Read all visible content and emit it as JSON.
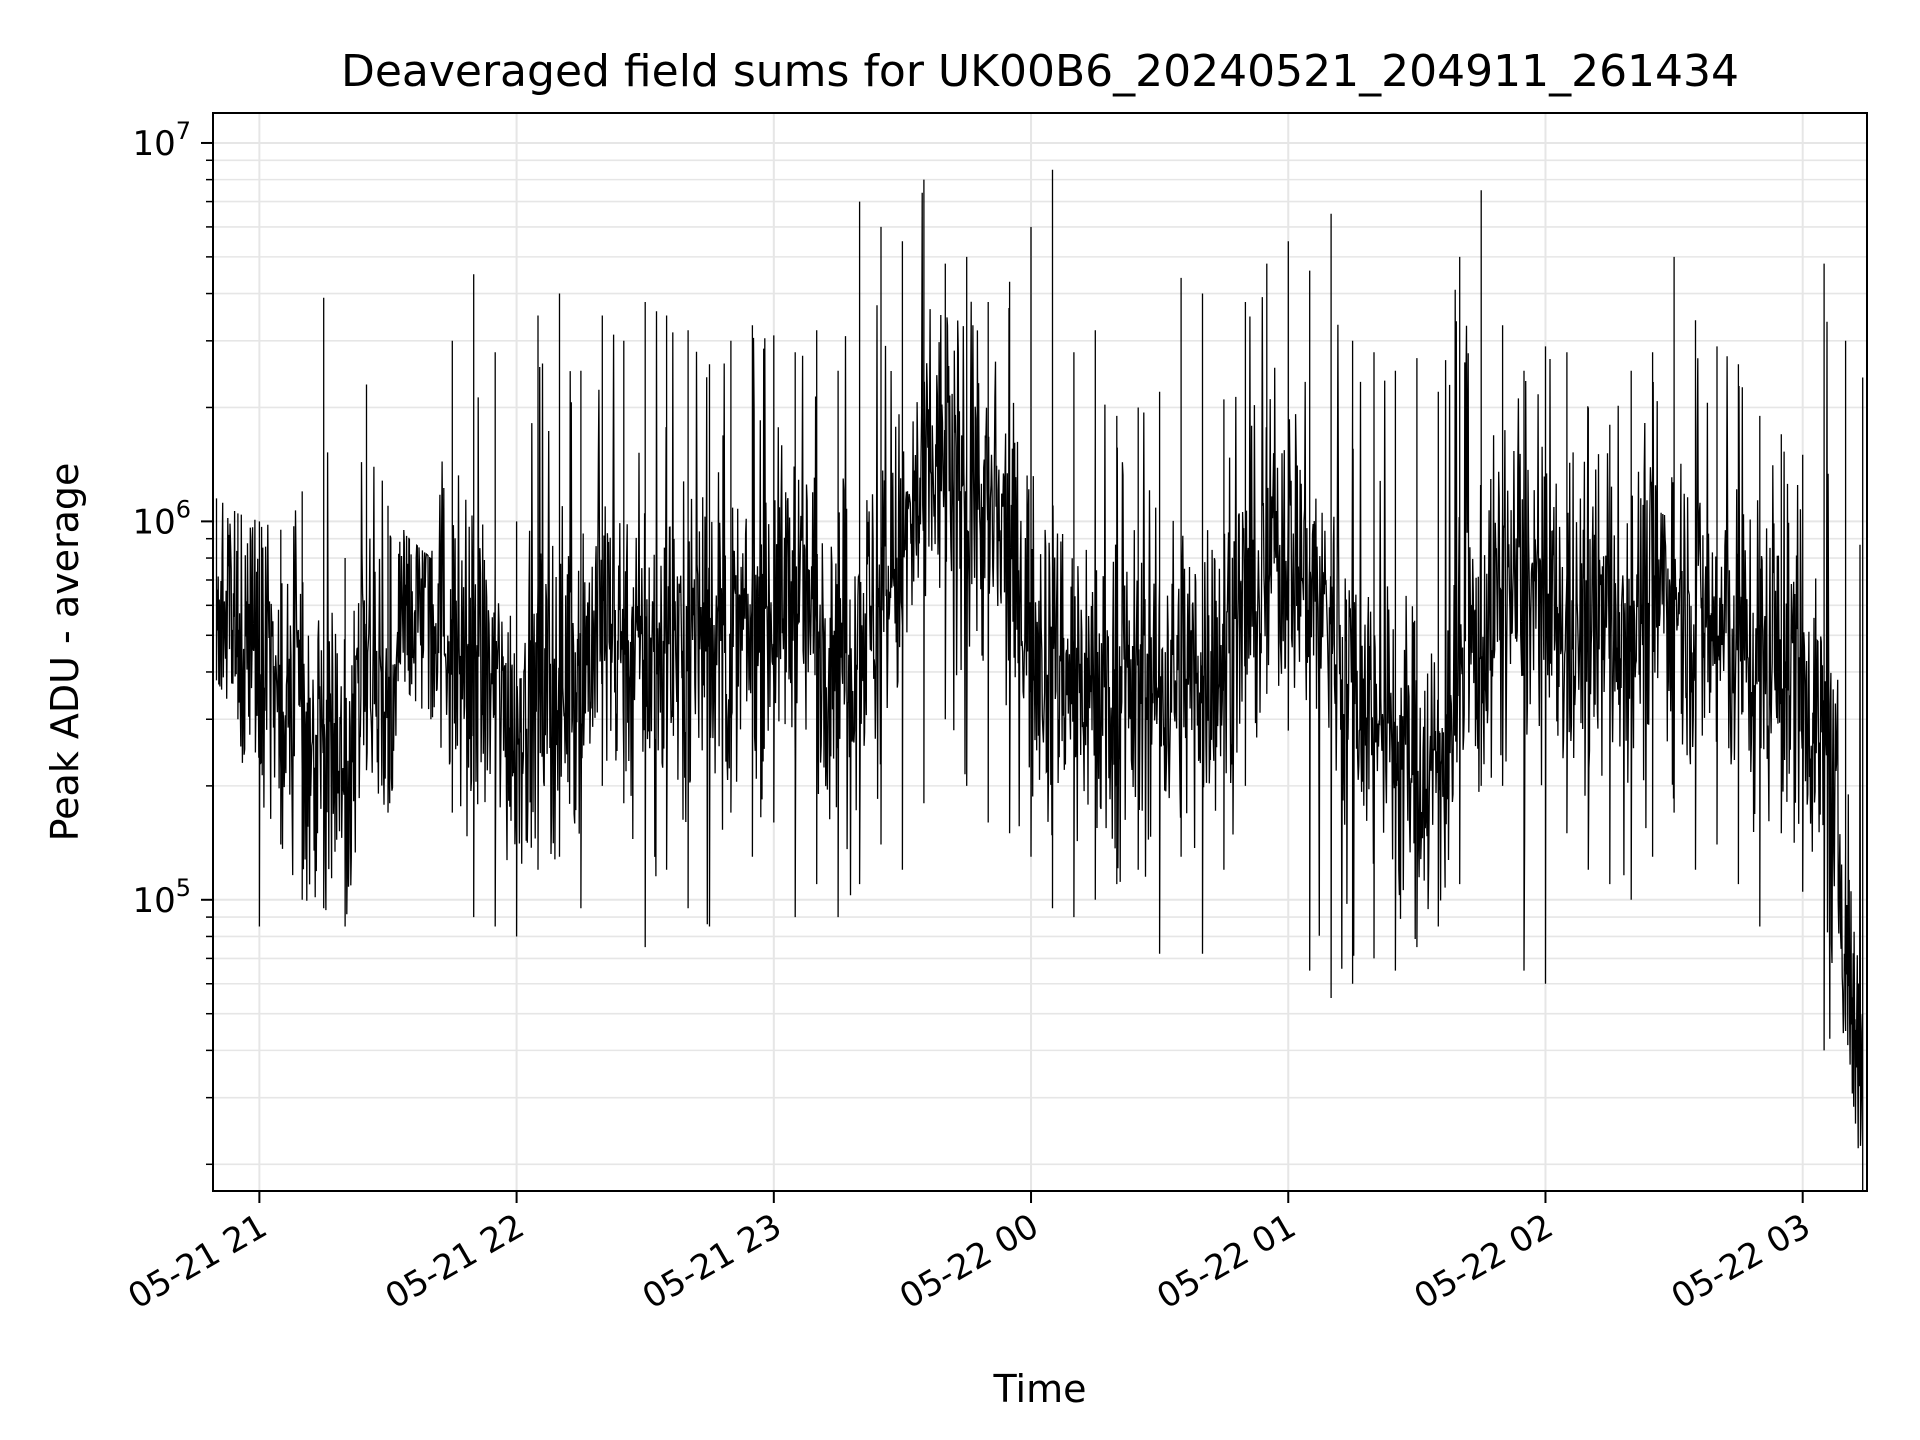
{
  "chart_data": {
    "type": "line",
    "title": "Deaveraged field sums for UK00B6_20240521_204911_261434",
    "xlabel": "Time",
    "ylabel": "Peak ADU - average",
    "yscale": "log",
    "ylim": [
      17000,
      12000000
    ],
    "xlim": [
      "2024-05-21 20:49:11",
      "2024-05-22 03:15:00"
    ],
    "grid": true,
    "series_color": "#000000",
    "x_ticks": [
      {
        "x": "2024-05-21 21:00",
        "label": "05-21 21"
      },
      {
        "x": "2024-05-21 22:00",
        "label": "05-21 22"
      },
      {
        "x": "2024-05-21 23:00",
        "label": "05-21 23"
      },
      {
        "x": "2024-05-22 00:00",
        "label": "05-22 00"
      },
      {
        "x": "2024-05-22 01:00",
        "label": "05-22 01"
      },
      {
        "x": "2024-05-22 02:00",
        "label": "05-22 02"
      },
      {
        "x": "2024-05-22 03:00",
        "label": "05-22 03"
      }
    ],
    "y_ticks": [
      {
        "y": 100000,
        "base": "10",
        "exp": "5"
      },
      {
        "y": 1000000,
        "base": "10",
        "exp": "6"
      },
      {
        "y": 10000000,
        "base": "10",
        "exp": "7"
      }
    ],
    "series": [
      {
        "x": [
          "2024-05-21 20:50",
          "2024-05-21 20:55",
          "2024-05-21 21:00",
          "2024-05-21 21:05",
          "2024-05-21 21:10",
          "2024-05-21 21:15",
          "2024-05-21 21:20",
          "2024-05-21 21:25",
          "2024-05-21 21:30",
          "2024-05-21 21:35",
          "2024-05-21 21:40",
          "2024-05-21 21:45",
          "2024-05-21 21:50",
          "2024-05-21 21:55",
          "2024-05-21 22:00",
          "2024-05-21 22:05",
          "2024-05-21 22:10",
          "2024-05-21 22:15",
          "2024-05-21 22:20",
          "2024-05-21 22:25",
          "2024-05-21 22:30",
          "2024-05-21 22:35",
          "2024-05-21 22:40",
          "2024-05-21 22:45",
          "2024-05-21 22:50",
          "2024-05-21 22:55",
          "2024-05-21 23:00",
          "2024-05-21 23:05",
          "2024-05-21 23:10",
          "2024-05-21 23:15",
          "2024-05-21 23:20",
          "2024-05-21 23:25",
          "2024-05-21 23:30",
          "2024-05-21 23:35",
          "2024-05-21 23:40",
          "2024-05-21 23:45",
          "2024-05-21 23:50",
          "2024-05-21 23:55",
          "2024-05-22 00:00",
          "2024-05-22 00:05",
          "2024-05-22 00:10",
          "2024-05-22 00:15",
          "2024-05-22 00:20",
          "2024-05-22 00:25",
          "2024-05-22 00:30",
          "2024-05-22 00:35",
          "2024-05-22 00:40",
          "2024-05-22 00:45",
          "2024-05-22 00:50",
          "2024-05-22 00:55",
          "2024-05-22 01:00",
          "2024-05-22 01:05",
          "2024-05-22 01:10",
          "2024-05-22 01:15",
          "2024-05-22 01:20",
          "2024-05-22 01:25",
          "2024-05-22 01:30",
          "2024-05-22 01:35",
          "2024-05-22 01:40",
          "2024-05-22 01:45",
          "2024-05-22 01:50",
          "2024-05-22 01:55",
          "2024-05-22 02:00",
          "2024-05-22 02:05",
          "2024-05-22 02:10",
          "2024-05-22 02:15",
          "2024-05-22 02:20",
          "2024-05-22 02:25",
          "2024-05-22 02:30",
          "2024-05-22 02:35",
          "2024-05-22 02:40",
          "2024-05-22 02:45",
          "2024-05-22 02:50",
          "2024-05-22 02:55",
          "2024-05-22 03:00",
          "2024-05-22 03:05",
          "2024-05-22 03:10",
          "2024-05-22 03:14"
        ],
        "y": [
          600000,
          500000,
          450000,
          350000,
          280000,
          250000,
          220000,
          400000,
          300000,
          600000,
          700000,
          500000,
          420000,
          350000,
          300000,
          350000,
          380000,
          420000,
          550000,
          500000,
          450000,
          480000,
          520000,
          560000,
          450000,
          500000,
          600000,
          650000,
          550000,
          480000,
          520000,
          600000,
          800000,
          1200000,
          1500000,
          1300000,
          1000000,
          800000,
          550000,
          450000,
          400000,
          380000,
          350000,
          360000,
          380000,
          400000,
          420000,
          450000,
          600000,
          750000,
          900000,
          700000,
          550000,
          380000,
          300000,
          260000,
          230000,
          220000,
          380000,
          500000,
          650000,
          700000,
          550000,
          500000,
          520000,
          550000,
          580000,
          600000,
          700000,
          550000,
          500000,
          480000,
          450000,
          420000,
          400000,
          250000,
          90000,
          30000
        ],
        "y_low": [
          380000,
          300000,
          85000,
          140000,
          100000,
          95000,
          85000,
          220000,
          170000,
          350000,
          300000,
          170000,
          90000,
          85000,
          80000,
          120000,
          130000,
          95000,
          200000,
          180000,
          75000,
          120000,
          95000,
          85000,
          170000,
          130000,
          160000,
          90000,
          110000,
          90000,
          110000,
          140000,
          120000,
          180000,
          300000,
          200000,
          160000,
          150000,
          130000,
          95000,
          90000,
          100000,
          110000,
          120000,
          72000,
          130000,
          72000,
          120000,
          200000,
          350000,
          280000,
          65000,
          55000,
          60000,
          70000,
          65000,
          75000,
          85000,
          110000,
          200000,
          200000,
          65000,
          60000,
          150000,
          120000,
          110000,
          100000,
          130000,
          170000,
          120000,
          140000,
          110000,
          85000,
          150000,
          105000,
          40000,
          45000,
          17000
        ],
        "y_high": [
          1150000,
          1050000,
          1000000,
          950000,
          1200000,
          3900000,
          800000,
          2300000,
          1100000,
          900000,
          800000,
          3000000,
          4500000,
          2800000,
          1000000,
          3500000,
          4000000,
          2500000,
          3500000,
          3000000,
          3800000,
          3500000,
          3200000,
          2600000,
          3000000,
          3300000,
          3100000,
          2800000,
          3200000,
          2500000,
          7000000,
          6000000,
          5500000,
          8000000,
          4800000,
          5000000,
          3800000,
          4300000,
          6000000,
          8500000,
          2800000,
          3200000,
          1900000,
          2000000,
          2200000,
          4400000,
          4000000,
          2100000,
          3800000,
          4800000,
          5500000,
          4600000,
          6500000,
          3000000,
          2800000,
          2500000,
          2700000,
          2200000,
          5000000,
          7500000,
          3300000,
          2500000,
          2900000,
          2800000,
          2000000,
          1800000,
          2500000,
          2800000,
          5000000,
          3400000,
          2900000,
          2600000,
          1900000,
          1700000,
          1500000,
          4800000,
          3000000,
          2400000
        ]
      }
    ]
  }
}
